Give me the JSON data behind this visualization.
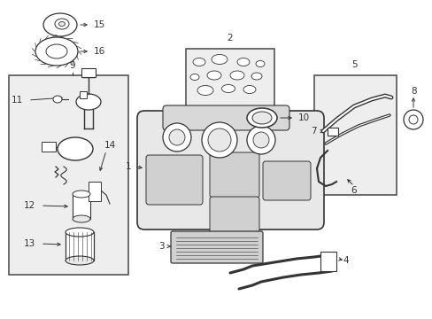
{
  "bg_color": "#ffffff",
  "fig_width": 4.89,
  "fig_height": 3.6,
  "dpi": 100,
  "gray": "#333333",
  "light_gray": "#e8e8e8",
  "box_face": "#eeeeee",
  "box_edge": "#555555"
}
